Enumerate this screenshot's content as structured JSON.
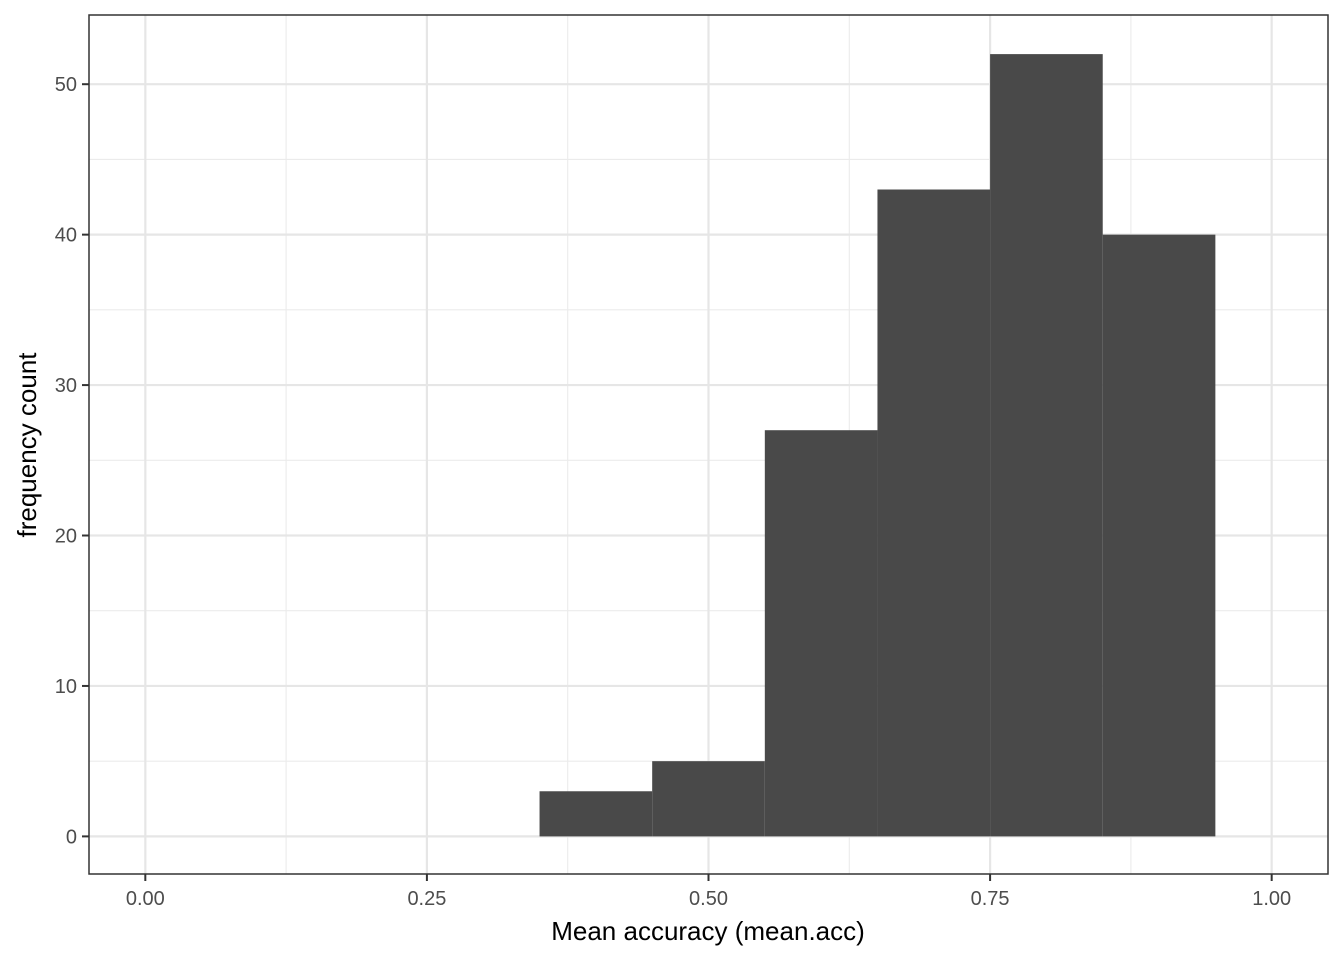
{
  "chart_data": {
    "type": "histogram",
    "x_label": "Mean accuracy (mean.acc)",
    "y_label": "frequency count",
    "bins": [
      0.35,
      0.45,
      0.55,
      0.65,
      0.75,
      0.85,
      0.95
    ],
    "values": [
      3,
      5,
      27,
      43,
      52,
      40
    ],
    "color": "#494949",
    "xlim": [
      -0.05,
      1.05
    ],
    "ylim": [
      -2.5,
      54.6
    ],
    "xticks": [
      {
        "value": 0,
        "label": "0.00"
      },
      {
        "value": 0.25,
        "label": "0.25"
      },
      {
        "value": 0.5,
        "label": "0.50"
      },
      {
        "value": 0.75,
        "label": "0.75"
      },
      {
        "value": 1,
        "label": "1.00"
      }
    ],
    "yticks": [
      0,
      10,
      20,
      30,
      40,
      50
    ],
    "minor_xticks": [
      0.125,
      0.375,
      0.625,
      0.875
    ],
    "minor_yticks": [
      5,
      15,
      25,
      35,
      45
    ],
    "grid": true
  }
}
